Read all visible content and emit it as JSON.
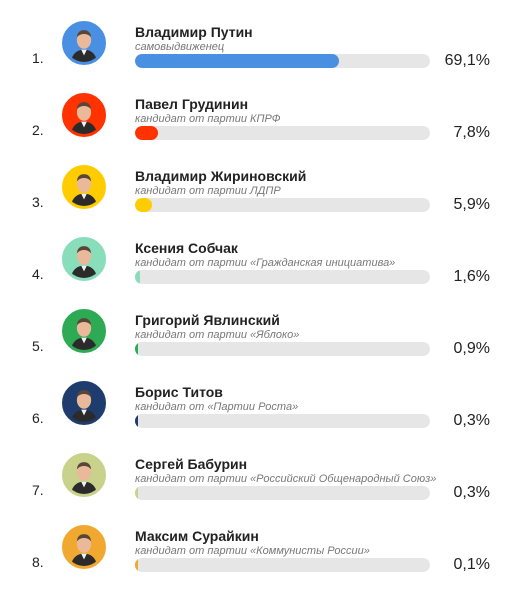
{
  "candidates": [
    {
      "rank": "1.",
      "name": "Владимир Путин",
      "subtitle": "самовыдвиженец",
      "percent_label": "69,1%",
      "value": 69.1,
      "color": "#4a90e2"
    },
    {
      "rank": "2.",
      "name": "Павел Грудинин",
      "subtitle": "кандидат от партии КПРФ",
      "percent_label": "7,8%",
      "value": 7.8,
      "color": "#ff3300"
    },
    {
      "rank": "3.",
      "name": "Владимир Жириновский",
      "subtitle": "кандидат от партии ЛДПР",
      "percent_label": "5,9%",
      "value": 5.9,
      "color": "#ffcc00"
    },
    {
      "rank": "4.",
      "name": "Ксения Собчак",
      "subtitle": "кандидат от партии «Гражданская инициатива»",
      "percent_label": "1,6%",
      "value": 1.6,
      "color": "#88ddbb"
    },
    {
      "rank": "5.",
      "name": "Григорий Явлинский",
      "subtitle": "кандидат от партии «Яблоко»",
      "percent_label": "0,9%",
      "value": 0.9,
      "color": "#2eaa55"
    },
    {
      "rank": "6.",
      "name": "Борис Титов",
      "subtitle": "кандидат от «Партии Роста»",
      "percent_label": "0,3%",
      "value": 0.3,
      "color": "#1f3c6e"
    },
    {
      "rank": "7.",
      "name": "Сергей Бабурин",
      "subtitle": "кандидат от партии «Российский Общенародный Союз»",
      "percent_label": "0,3%",
      "value": 0.3,
      "color": "#c8d28a"
    },
    {
      "rank": "8.",
      "name": "Максим Сурайкин",
      "subtitle": "кандидат от партии «Коммунисты России»",
      "percent_label": "0,1%",
      "value": 0.1,
      "color": "#f0a830"
    }
  ]
}
